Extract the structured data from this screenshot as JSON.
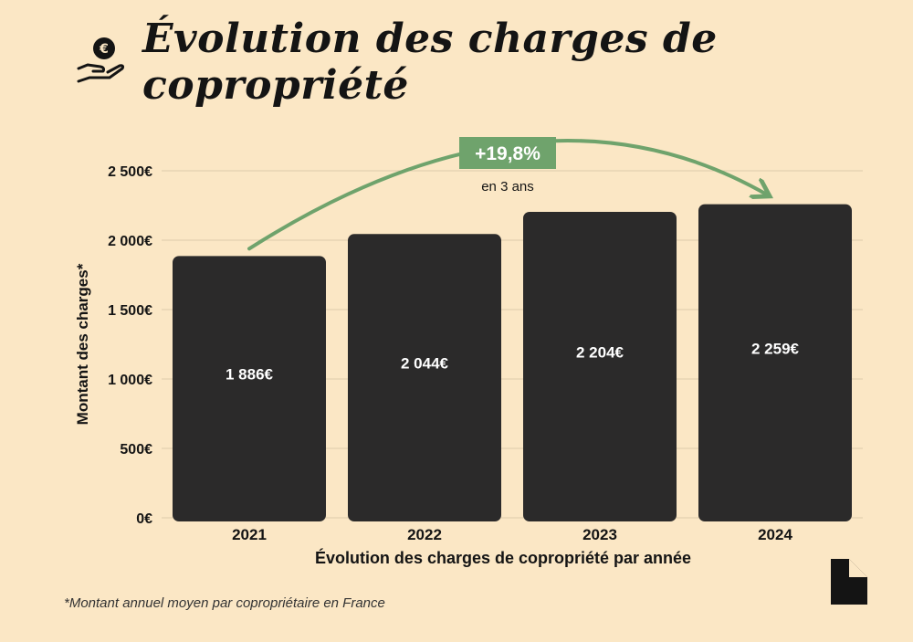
{
  "title": "Évolution des charges de copropriété",
  "icon": "euro-coin-hand-icon",
  "logo": "document-corner-logo",
  "footnote": "*Montant annuel moyen par copropriétaire en France",
  "colors": {
    "background": "#fbe7c5",
    "bar": "#2b2a2a",
    "accent": "#6fa36c",
    "grid": "#dccbaa"
  },
  "chart_data": {
    "type": "bar",
    "categories": [
      "2021",
      "2022",
      "2023",
      "2024"
    ],
    "values": [
      1886,
      2044,
      2204,
      2259
    ],
    "value_labels": [
      "1 886€",
      "2 044€",
      "2 204€",
      "2 259€"
    ],
    "xlabel": "Évolution des charges de copropriété par année",
    "ylabel": "Montant des charges*",
    "ylim": [
      0,
      2500
    ],
    "yticks": [
      0,
      500,
      1000,
      1500,
      2000,
      2500
    ],
    "ytick_labels": [
      "0€",
      "500€",
      "1 000€",
      "1 500€",
      "2 000€",
      "2 500€"
    ],
    "grid": true,
    "annotation": {
      "label": "+19,8%",
      "sublabel": "en 3 ans",
      "from": "2021",
      "to": "2024"
    }
  }
}
